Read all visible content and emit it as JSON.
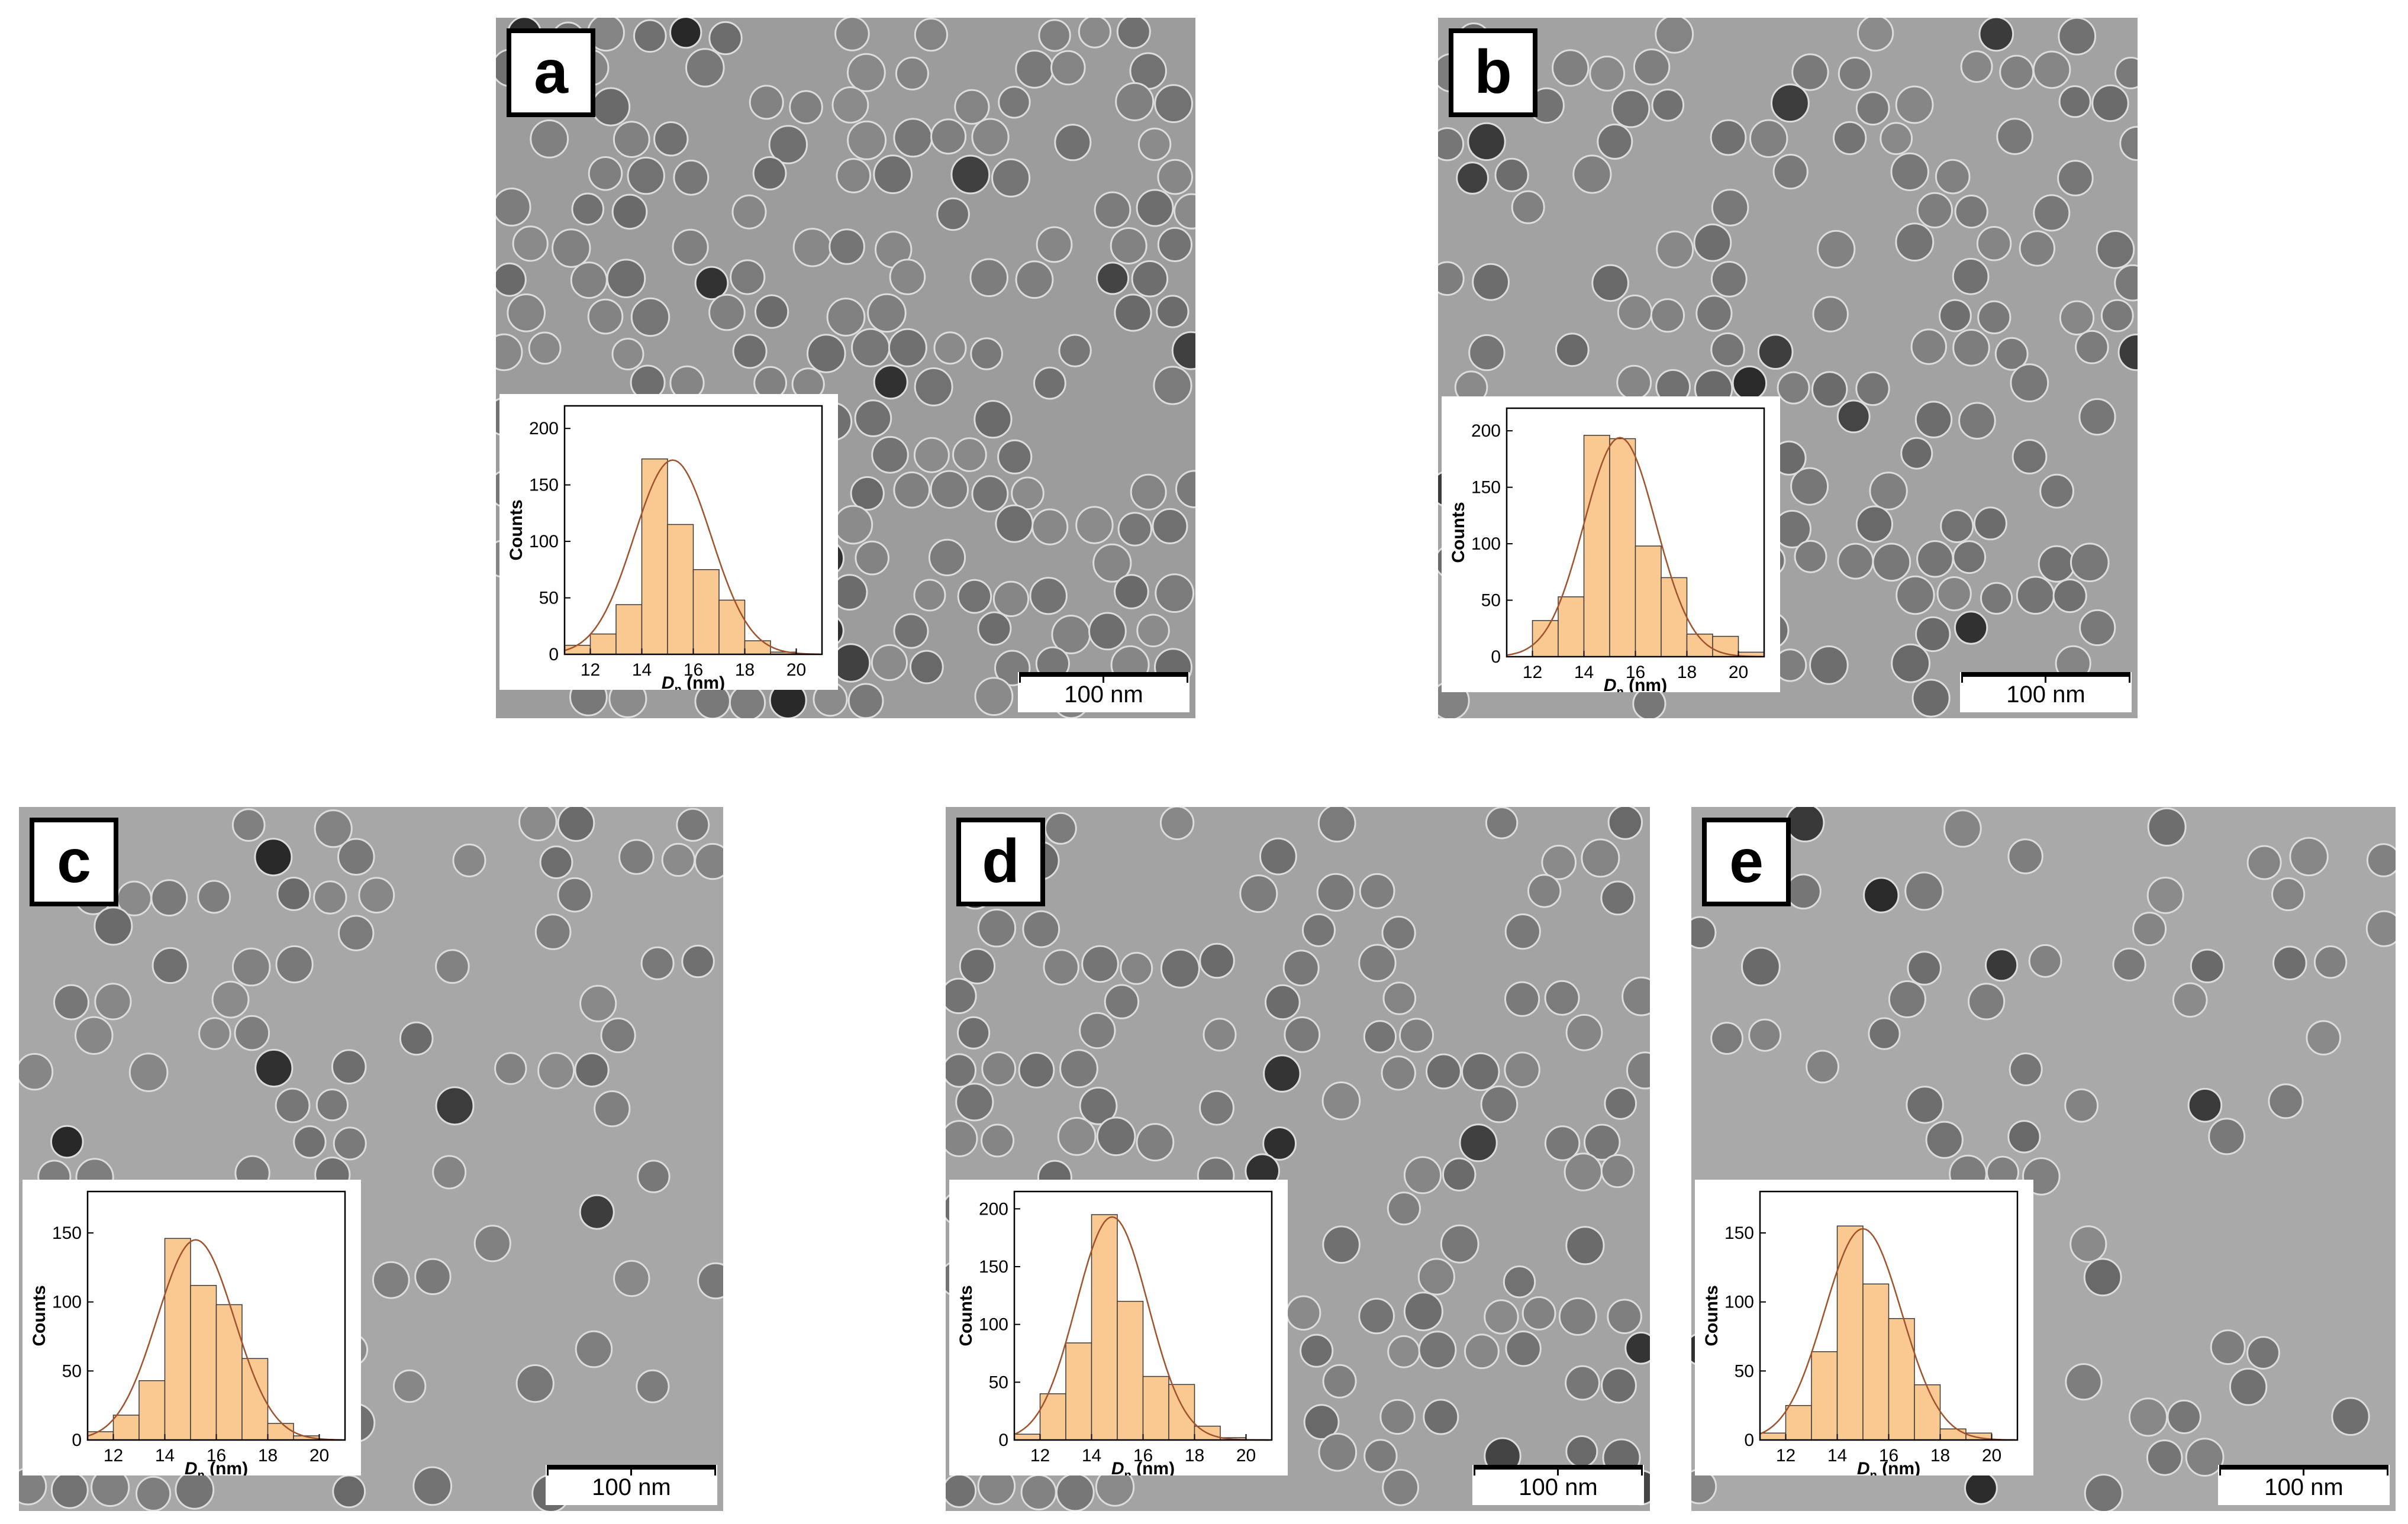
{
  "panels": [
    {
      "id": "a",
      "letter": "a",
      "scale_label": "100 nm",
      "background": "#9c9c9c",
      "density": 0.55
    },
    {
      "id": "b",
      "letter": "b",
      "scale_label": "100 nm",
      "background": "#a2a2a2",
      "density": 0.42
    },
    {
      "id": "c",
      "letter": "c",
      "scale_label": "100 nm",
      "background": "#a7a7a7",
      "density": 0.32
    },
    {
      "id": "d",
      "letter": "d",
      "scale_label": "100 nm",
      "background": "#a3a3a3",
      "density": 0.34
    },
    {
      "id": "e",
      "letter": "e",
      "scale_label": "100 nm",
      "background": "#a9a9a9",
      "density": 0.16
    }
  ],
  "chart_data": [
    {
      "panel": "a",
      "type": "bar",
      "x": [
        11,
        12,
        13,
        14,
        15,
        16,
        17,
        18,
        19,
        20
      ],
      "values": [
        8,
        18,
        44,
        173,
        115,
        75,
        48,
        12,
        2,
        0
      ],
      "fit": {
        "mean": 15.2,
        "sd": 1.5,
        "peak": 172
      },
      "xlabel_main": "D",
      "xlabel_sub": "n",
      "xlabel_unit": " (nm)",
      "ylabel": "Counts",
      "xticks": [
        12,
        14,
        16,
        18,
        20
      ],
      "yticks": [
        0,
        50,
        100,
        150,
        200
      ],
      "xlim": [
        11,
        21
      ],
      "ylim": [
        0,
        220
      ],
      "bar_color": "#f9c991",
      "fit_color": "#a0522d"
    },
    {
      "panel": "b",
      "type": "bar",
      "x": [
        12,
        13,
        14,
        15,
        16,
        17,
        18,
        19,
        20
      ],
      "values": [
        32,
        53,
        196,
        193,
        98,
        70,
        20,
        18,
        4
      ],
      "fit": {
        "mean": 15.4,
        "sd": 1.4,
        "peak": 194
      },
      "xlabel_main": "D",
      "xlabel_sub": "n",
      "xlabel_unit": " (nm)",
      "ylabel": "Counts",
      "xticks": [
        12,
        14,
        16,
        18,
        20
      ],
      "yticks": [
        0,
        50,
        100,
        150,
        200
      ],
      "xlim": [
        11,
        21
      ],
      "ylim": [
        0,
        220
      ],
      "bar_color": "#f9c991",
      "fit_color": "#a0522d"
    },
    {
      "panel": "c",
      "type": "bar",
      "x": [
        11,
        12,
        13,
        14,
        15,
        16,
        17,
        18,
        19,
        20
      ],
      "values": [
        6,
        18,
        43,
        146,
        112,
        98,
        59,
        12,
        3,
        0
      ],
      "fit": {
        "mean": 15.2,
        "sd": 1.5,
        "peak": 145
      },
      "xlabel_main": "D",
      "xlabel_sub": "n",
      "xlabel_unit": " (nm)",
      "ylabel": "Counts",
      "xticks": [
        12,
        14,
        16,
        18,
        20
      ],
      "yticks": [
        0,
        50,
        100,
        150
      ],
      "xlim": [
        11,
        21
      ],
      "ylim": [
        0,
        180
      ],
      "bar_color": "#f9c991",
      "fit_color": "#a0522d"
    },
    {
      "panel": "d",
      "type": "bar",
      "x": [
        11,
        12,
        13,
        14,
        15,
        16,
        17,
        18,
        19,
        20
      ],
      "values": [
        5,
        40,
        84,
        195,
        120,
        55,
        48,
        12,
        2,
        0
      ],
      "fit": {
        "mean": 14.8,
        "sd": 1.4,
        "peak": 193
      },
      "xlabel_main": "D",
      "xlabel_sub": "n",
      "xlabel_unit": " (nm)",
      "ylabel": "Counts",
      "xticks": [
        12,
        14,
        16,
        18,
        20
      ],
      "yticks": [
        0,
        50,
        100,
        150,
        200
      ],
      "xlim": [
        11,
        21
      ],
      "ylim": [
        0,
        215
      ],
      "bar_color": "#f9c991",
      "fit_color": "#a0522d"
    },
    {
      "panel": "e",
      "type": "bar",
      "x": [
        11,
        12,
        13,
        14,
        15,
        16,
        17,
        18,
        19,
        20
      ],
      "values": [
        5,
        25,
        64,
        155,
        113,
        88,
        40,
        8,
        5,
        0
      ],
      "fit": {
        "mean": 15.0,
        "sd": 1.5,
        "peak": 153
      },
      "xlabel_main": "D",
      "xlabel_sub": "n",
      "xlabel_unit": " (nm)",
      "ylabel": "Counts",
      "xticks": [
        12,
        14,
        16,
        18,
        20
      ],
      "yticks": [
        0,
        50,
        100,
        150
      ],
      "xlim": [
        11,
        21
      ],
      "ylim": [
        0,
        180
      ],
      "bar_color": "#f9c991",
      "fit_color": "#a0522d"
    }
  ]
}
